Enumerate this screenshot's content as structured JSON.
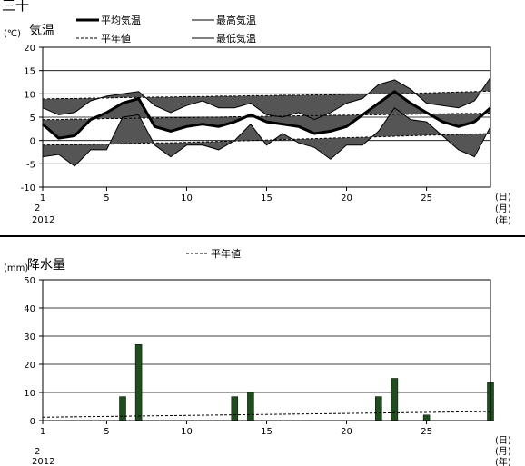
{
  "header": {
    "title": "三十"
  },
  "temperature": {
    "unit": "(℃)",
    "title": "気温",
    "legend": {
      "mean": "平均気温",
      "max": "最高気温",
      "normal": "平年値",
      "min": "最低気温"
    }
  },
  "precipitation": {
    "unit": "(mm)",
    "title": "降水量",
    "legend": {
      "normal": "平年値"
    }
  },
  "axis": {
    "x_ticks": [
      "1",
      "5",
      "10",
      "15",
      "20",
      "25"
    ],
    "month": "2",
    "year": "2012",
    "day_unit": "(日)",
    "month_unit": "(月)",
    "year_unit": "(年)"
  },
  "chart_data": [
    {
      "type": "line",
      "title": "気温",
      "ylabel": "(℃)",
      "xlim": [
        1,
        29
      ],
      "ylim": [
        -10,
        20
      ],
      "x_ticks": [
        1,
        5,
        10,
        15,
        20,
        25
      ],
      "y_ticks": [
        -10,
        -5,
        0,
        5,
        10,
        15,
        20
      ],
      "grid": true,
      "x": [
        1,
        2,
        3,
        4,
        5,
        6,
        7,
        8,
        9,
        10,
        11,
        12,
        13,
        14,
        15,
        16,
        17,
        18,
        19,
        20,
        21,
        22,
        23,
        24,
        25,
        26,
        27,
        28,
        29
      ],
      "series": [
        {
          "name": "平均気温",
          "values": [
            3.5,
            0.5,
            1,
            4.5,
            6,
            8,
            9,
            3,
            2,
            3,
            3.5,
            3,
            4,
            5.5,
            4,
            3.5,
            3,
            1.5,
            2,
            3,
            5.5,
            8,
            10.5,
            8,
            6,
            4,
            3,
            4,
            7
          ]
        },
        {
          "name": "最高気温",
          "values": [
            7,
            5.5,
            6,
            8.5,
            9.5,
            10,
            10.5,
            7.5,
            6,
            7.5,
            8.5,
            7,
            7,
            8,
            5.5,
            5,
            6,
            4.5,
            6,
            8,
            9,
            12,
            13,
            11,
            8,
            7.5,
            7,
            8.5,
            13.5
          ]
        },
        {
          "name": "最低気温",
          "values": [
            -3.5,
            -3,
            -5.5,
            -2,
            -2,
            5,
            5.5,
            -1,
            -3.5,
            -1,
            -1,
            -2,
            0,
            3.5,
            -1,
            1.5,
            -0.5,
            -1.5,
            -4,
            -1,
            -1,
            2,
            7,
            4.5,
            4,
            1,
            -2,
            -3.5,
            3
          ]
        },
        {
          "name": "平年値 平均",
          "values": [
            4.5,
            4.5,
            4.6,
            4.6,
            4.7,
            4.7,
            4.8,
            4.8,
            4.9,
            4.9,
            5,
            5,
            5.1,
            5.1,
            5.2,
            5.2,
            5.3,
            5.3,
            5.4,
            5.4,
            5.5,
            5.5,
            5.6,
            5.6,
            5.7,
            5.7,
            5.8,
            5.8,
            5.9
          ]
        },
        {
          "name": "平年値 最高",
          "values": [
            8.9,
            9,
            9,
            9.1,
            9.1,
            9.2,
            9.2,
            9.3,
            9.3,
            9.4,
            9.4,
            9.5,
            9.5,
            9.6,
            9.6,
            9.7,
            9.7,
            9.8,
            9.8,
            9.9,
            9.9,
            10,
            10,
            10.1,
            10.2,
            10.3,
            10.4,
            10.5,
            10.6
          ]
        },
        {
          "name": "平年値 最低",
          "values": [
            -1,
            -0.9,
            -0.9,
            -0.8,
            -0.8,
            -0.7,
            -0.6,
            -0.5,
            -0.5,
            -0.4,
            -0.3,
            -0.2,
            -0.1,
            0,
            0.1,
            0.2,
            0.3,
            0.4,
            0.5,
            0.6,
            0.7,
            0.8,
            0.9,
            1,
            1.1,
            1.2,
            1.3,
            1.4,
            1.5
          ]
        }
      ]
    },
    {
      "type": "bar",
      "title": "降水量",
      "ylabel": "(mm)",
      "xlim": [
        1,
        29
      ],
      "ylim": [
        0,
        50
      ],
      "x_ticks": [
        1,
        5,
        10,
        15,
        20,
        25
      ],
      "y_ticks": [
        0,
        10,
        20,
        30,
        40,
        50
      ],
      "grid": true,
      "x": [
        6,
        7,
        13,
        14,
        22,
        23,
        25,
        29
      ],
      "values": [
        8.5,
        27,
        8.5,
        10,
        8.5,
        15,
        2,
        13.5
      ],
      "normal": {
        "name": "平年値",
        "x": [
          1,
          29
        ],
        "values": [
          1.2,
          3.2
        ]
      }
    }
  ],
  "colors": {
    "bar": "#1e4d1e",
    "band": "#555555",
    "line": "#000000"
  }
}
